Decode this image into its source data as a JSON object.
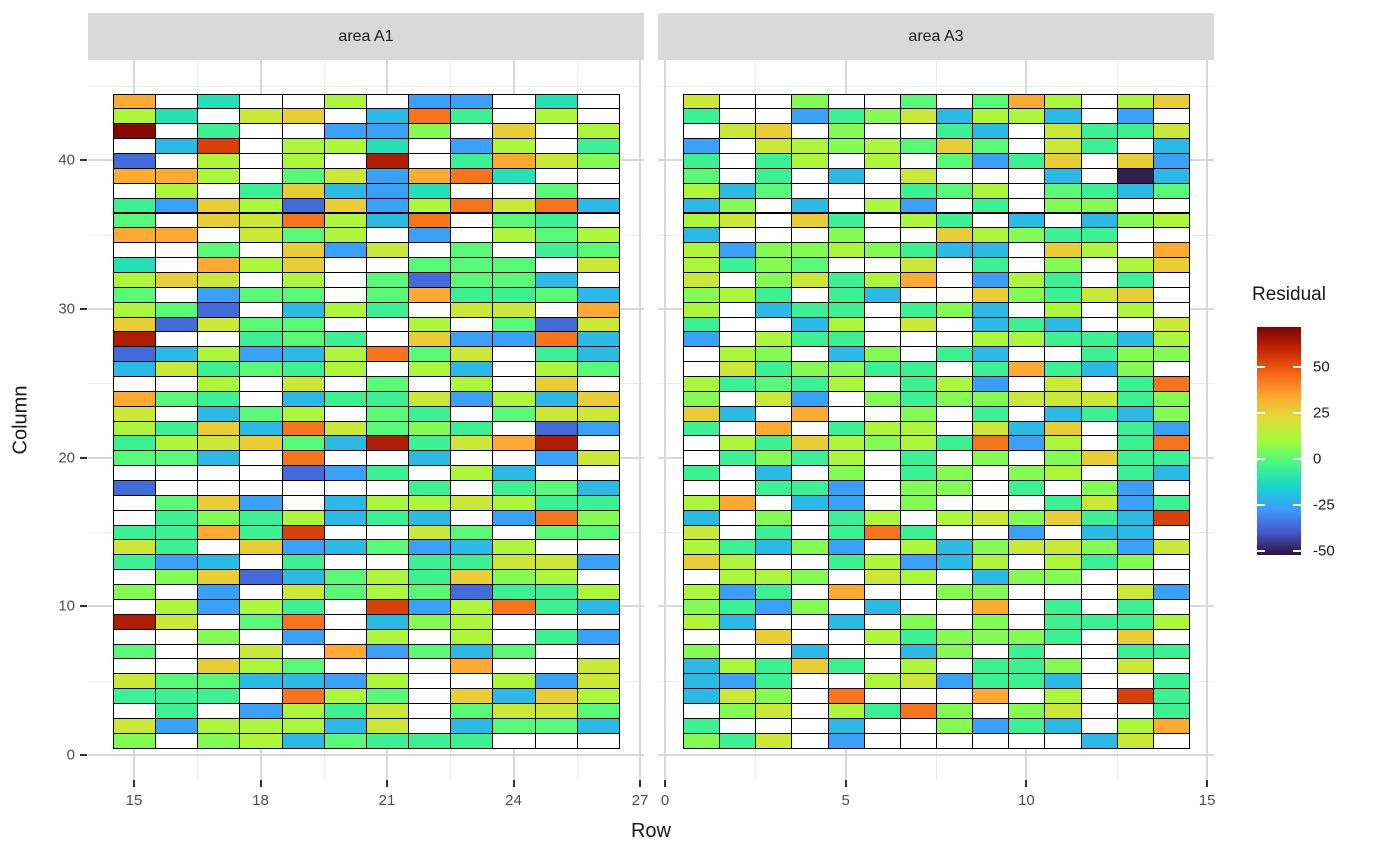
{
  "chart_data": {
    "type": "heatmap",
    "xlabel": "Row",
    "ylabel": "Column",
    "y_ticks": [
      0,
      10,
      20,
      30,
      40
    ],
    "y_minor_ticks": [
      5,
      15,
      25,
      35,
      45
    ],
    "y_domain": [
      -1.7,
      46.8
    ],
    "row_top": 44,
    "row_bottom": 1,
    "value_key": {
      "n": -50,
      "B": -36,
      "b": -26,
      "c": -21,
      "t": -11,
      "T": -5,
      "g": 0,
      "G": 6,
      "l": 12,
      "y": 18,
      "Y": 26,
      "o": 34,
      "O": 44,
      "r": 54,
      "R": 63,
      "D": 70
    },
    "na_char": ".",
    "na_color": "#FFFFFF",
    "tile_border": "#000000",
    "facets": [
      {
        "label": "area A1",
        "x_ticks": [
          15,
          18,
          21,
          24,
          27
        ],
        "x_minor_ticks": [
          16.5,
          19.5,
          22.5,
          25.5
        ],
        "x_domain": [
          13.9,
          27.1
        ],
        "col_start": 15,
        "n_cols": 12,
        "rows_top_to_bottom": [
          "o.t..l.bb.t.",
          "lt.yY.cOT.l.",
          "D.T..bbG.Y.l",
          ".cr.llt.bl.T",
          "B.l.l.R.ToyG",
          "ool.gyboOt..",
          ".l.TYcbt..g.",
          "TbYlBYblOyOc",
          "g.YyOlcO.gT.",
          "oo.ygl.b.lgl",
          "..g.Yby.g.Tg",
          "t.olY..ggg.y",
          "lYy.l.gBggc.",
          "g.bgg.goTTgc",
          "lgB.clT.yy.o",
          "YBygg..l.gBy",
          "R..TgT.YbbOc",
          "BclbclOgy.Tc",
          "cyTgTl.lc.lg",
          "..l.y.g.l.Y.",
          "ogT.cTTyblcY",
          "y.cgl.gT.gyy",
          "lTYcOygGT.Bb",
          "TlyYgcRTyoR.",
          "ggc.O..c..by",
          "....BbT.lc..",
          "B......T.Tgc",
          ".gYb.cllylTT",
          ".TGTlcTc.bOG",
          "TToTr..yg.gg",
          "yT.Ybcgbcl..",
          "Tbc.T..TTyyb",
          ".GYBcglTYGl.",
          "G.b.yglgBTTl",
          ".lblT.rblOTc",
          "Ry.gO.cGl...",
          "..G.b.l.l.Tb",
          "g..y.obgcg..",
          "..Ylg...o..y",
          "yggccbl..lby",
          "TTT.Olg.YcYl",
          ".T.blTy.gyyg",
          "yblllcy.cggc",
          "G.GlcgTTT..."
        ]
      },
      {
        "label": "area A3",
        "x_ticks": [
          0,
          5,
          10,
          15
        ],
        "x_minor_ticks": [
          2.5,
          7.5,
          12.5
        ],
        "x_domain": [
          -0.2,
          15.2
        ],
        "col_start": 1,
        "n_cols": 14,
        "rows_top_to_bottom": [
          "y..G..g.gol.lY",
          "T..bTGycllc.b.",
          ".yY.G..Tc.yTTy",
          "b.ylGlgYg.yT.c",
          "T.Tl.l.gbTY.Yb",
          "g.T.c.y...c.nc",
          "lcg...Tgl.gTcg",
          "cG.c.lb.T.GG..",
          "ly.YT.lT.c.cGl",
          "c...G..YlGTT..",
          "lbGGlGTcc.Yl.o",
          "lTGg..y.T.G.lY",
          "y.GyTlo.blT.T.",
          "GlT.Tc..YGTyY.",
          "l.cTT.TGc.l.l.",
          "T..cl.y.cTc..y",
          "b.lTT...llTTcl",
          ".lG.cG.Tc..TGG",
          ".yTGGTT.ToTcG.",
          "lTgTl.Tlb.y.TO",
          "G.yb.GTGGyyyTG",
          "Yc.o..G.T.cTcG",
          "T.o.Tll.ycY.Tb",
          ".lTYlGlTObl.TO",
          ".TGTl.T.G.GYTT",
          "T.c.G.TG.Gl.Tc",
          "..TTb.GG.T.Gb.",
          "lo.cb.G...TybT",
          "c.G.Tl.lyGYTcr",
          "y.T.TOT..b.cc.",
          "lTcGb.lcGyyGby",
          "Yl..Tlbcl.lTG.",
          ".llG.yl.cGG...",
          "lbT.o..GG...yb",
          "GTbG.c..o.T.T.",
          "lc..c.G.G.TTTl",
          "..Y..lTGGGT.Y.",
          "G..c..cG.T..TT",
          "clTYT.l.TTG.y.",
          "cbT..lybTTc..T",
          "cyG.O...o.l.rT",
          ".Gy.lTOG.Gy..T",
          "T...c..GbTc.lo",
          "GTy.b......cy."
        ]
      }
    ],
    "legend": {
      "title": "Residual",
      "ticks": [
        50,
        25,
        0,
        -25,
        -50
      ],
      "bar_domain": [
        -52,
        72
      ],
      "turbo_stops": [
        "#30123B",
        "#4458CB",
        "#3E9BFE",
        "#18D6CB",
        "#46F884",
        "#A2FC3C",
        "#E1DD37",
        "#FEA632",
        "#F36315",
        "#C42503",
        "#7A0403"
      ]
    },
    "strip": {
      "bg": "#D9D9D9",
      "text_color": "#1A1A1A"
    },
    "grid": {
      "major_color": "#D8D8D8",
      "minor_color": "#ECECEC"
    },
    "tick_label_color": "#4D4D4D"
  }
}
